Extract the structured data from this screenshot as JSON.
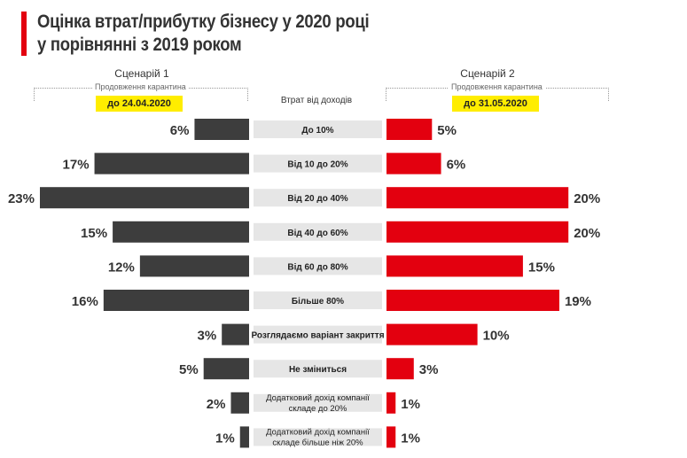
{
  "title_line1": "Оцінка втрат/прибутку бізнесу у 2020 році",
  "title_line2": "у порівнянні з 2019 роком",
  "scenario1": {
    "title": "Сценарій 1",
    "subtitle": "Продовження карантина",
    "date": "до 24.04.2020"
  },
  "scenario2": {
    "title": "Сценарій 2",
    "subtitle": "Продовження карантина",
    "date": "до 31.05.2020"
  },
  "center_header": "Втрат  від доходів",
  "colors": {
    "left_bar": "#3d3d3d",
    "right_bar": "#e3000f",
    "category_band": "#e6e6e6",
    "accent": "#e3000f",
    "badge": "#ffed00"
  },
  "chart_data": {
    "type": "bar",
    "orientation": "horizontal-diverging",
    "categories": [
      "До 10%",
      "Від 10 до 20%",
      "Від 20 до 40%",
      "Від 40 до 60%",
      "Від 60 до 80%",
      "Більше 80%",
      "Розглядаємо  варіант закриття",
      "Не зміниться",
      "Додатковий дохід  компанії|складе до 20%",
      "Додатковий дохід компанії|складе більше ніж 20%"
    ],
    "series": [
      {
        "name": "Сценарій 1",
        "values": [
          6,
          17,
          23,
          15,
          12,
          16,
          3,
          5,
          2,
          1
        ],
        "labels": [
          "6%",
          "17%",
          "23%",
          "15%",
          "12%",
          "16%",
          "3%",
          "5%",
          "2%",
          "1%"
        ]
      },
      {
        "name": "Сценарій 2",
        "values": [
          5,
          6,
          20,
          20,
          15,
          19,
          10,
          3,
          1,
          1
        ],
        "labels": [
          "5%",
          "6%",
          "20%",
          "20%",
          "15%",
          "19%",
          "10%",
          "3%",
          "1%",
          "1%"
        ]
      }
    ],
    "xlim": [
      0,
      23
    ]
  }
}
